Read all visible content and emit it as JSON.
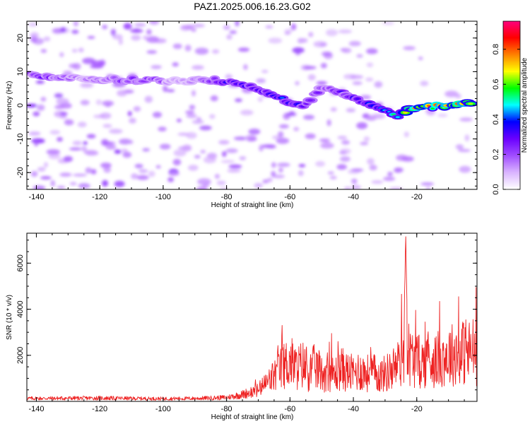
{
  "title": "PAZ1.2025.006.16.23.G02",
  "chart_data": [
    {
      "type": "heatmap",
      "title": "PAZ1.2025.006.16.23.G02",
      "xlabel": "Height of straight line (km)",
      "ylabel": "Frequency (Hz)",
      "xlim": [
        -143,
        -1
      ],
      "ylim": [
        -25,
        25
      ],
      "x_ticks": [
        -140,
        -120,
        -100,
        -80,
        -60,
        -40,
        -20
      ],
      "y_ticks": [
        -20,
        -10,
        0,
        10,
        20
      ],
      "colorbar": {
        "label": "Normalized spectral amplitude",
        "range": [
          0,
          0.96
        ],
        "ticks": [
          0.0,
          0.2,
          0.4,
          0.6,
          0.8
        ],
        "colormap": [
          "#ffffff",
          "#d9b3ff",
          "#a04dff",
          "#6a00ff",
          "#0000ff",
          "#00ffff",
          "#00ff00",
          "#ffff00",
          "#ff8000",
          "#ff0000",
          "#ff0080"
        ]
      },
      "ridge": [
        {
          "x": -142,
          "y": 9,
          "v": 0.25
        },
        {
          "x": -138,
          "y": 8.5,
          "v": 0.3
        },
        {
          "x": -133,
          "y": 8,
          "v": 0.25
        },
        {
          "x": -126,
          "y": 8,
          "v": 0.15
        },
        {
          "x": -105,
          "y": 7.5,
          "v": 0.3
        },
        {
          "x": -95,
          "y": 7,
          "v": 0.12
        },
        {
          "x": -85,
          "y": 7.5,
          "v": 0.25
        },
        {
          "x": -80,
          "y": 7,
          "v": 0.35
        },
        {
          "x": -75,
          "y": 6.5,
          "v": 0.35
        },
        {
          "x": -70,
          "y": 5,
          "v": 0.4
        },
        {
          "x": -65,
          "y": 3,
          "v": 0.4
        },
        {
          "x": -60,
          "y": 1,
          "v": 0.35
        },
        {
          "x": -56,
          "y": -0.5,
          "v": 0.35
        },
        {
          "x": -50,
          "y": 5,
          "v": 0.25
        },
        {
          "x": -45,
          "y": 4,
          "v": 0.3
        },
        {
          "x": -40,
          "y": 2.5,
          "v": 0.35
        },
        {
          "x": -35,
          "y": 0,
          "v": 0.4
        },
        {
          "x": -30,
          "y": -1.5,
          "v": 0.45
        },
        {
          "x": -26,
          "y": -3,
          "v": 0.5
        },
        {
          "x": -20,
          "y": -0.5,
          "v": 0.85
        },
        {
          "x": -15,
          "y": -0.5,
          "v": 0.75
        },
        {
          "x": -10,
          "y": 0,
          "v": 0.85
        },
        {
          "x": -5,
          "y": 0.5,
          "v": 0.8
        },
        {
          "x": -2,
          "y": 1,
          "v": 0.7
        }
      ]
    },
    {
      "type": "line",
      "xlabel": "Height of straight line (km)",
      "ylabel": "SNR (10 * v/v)",
      "xlim": [
        -143,
        -1
      ],
      "ylim": [
        0,
        7300
      ],
      "x_ticks": [
        -140,
        -120,
        -100,
        -80,
        -60,
        -40,
        -20
      ],
      "y_ticks": [
        2000,
        4000,
        6000
      ],
      "color": "#ee2222",
      "series": [
        {
          "x": [
            -143,
            -130,
            -120,
            -110,
            -100,
            -90,
            -80,
            -75,
            -70,
            -68,
            -66,
            -64,
            -62,
            -60,
            -58,
            -56,
            -54,
            -52,
            -50,
            -48,
            -46,
            -44,
            -42,
            -40,
            -38,
            -36,
            -34,
            -32,
            -30,
            -28,
            -26,
            -25,
            -24,
            -23.5,
            -23,
            -22.5,
            -22,
            -21,
            -20,
            -18,
            -16,
            -14,
            -12,
            -10,
            -8,
            -6,
            -4,
            -2,
            -1
          ],
          "y": [
            150,
            160,
            170,
            150,
            140,
            150,
            200,
            350,
            600,
            900,
            1200,
            1600,
            1900,
            2200,
            1800,
            2000,
            1600,
            1900,
            1500,
            1700,
            1400,
            1800,
            1600,
            1500,
            1700,
            1500,
            1600,
            1400,
            1500,
            1700,
            2000,
            2300,
            3000,
            7300,
            3500,
            2600,
            2400,
            2300,
            2200,
            2100,
            2300,
            2200,
            2400,
            2500,
            2600,
            2700,
            2600,
            2800,
            2500
          ]
        }
      ]
    }
  ]
}
